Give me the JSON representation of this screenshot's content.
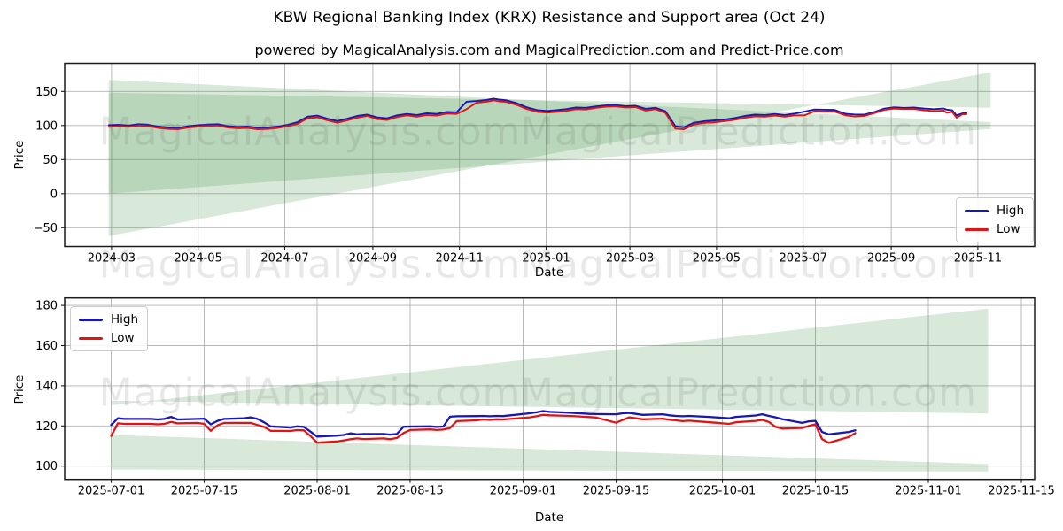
{
  "page": {
    "title": "KBW Regional Banking Index (KRX) Resistance and Support area (Oct 24)",
    "subtitle": "powered by MagicalAnalysis.com and MagicalPrediction.com and Predict-Price.com"
  },
  "watermarks": {
    "analysis": "MagicalAnalysis.com",
    "prediction": "MagicalPrediction.com"
  },
  "colors": {
    "high": "#1717b4",
    "low": "#e01414",
    "area": "#3d9140",
    "grid": "#b3b3b3",
    "frame": "#1a1a1a",
    "text": "#000000"
  },
  "chart_data": [
    {
      "type": "line",
      "name": "overview-chart",
      "xlabel": "Date",
      "ylabel": "Price",
      "grid": true,
      "x_domain": [
        "2024-01-28",
        "2025-12-11"
      ],
      "y_domain": [
        -77.5,
        191.3
      ],
      "yticks": [
        {
          "v": -50,
          "label": "−50"
        },
        {
          "v": 0,
          "label": "0"
        },
        {
          "v": 50,
          "label": "50"
        },
        {
          "v": 100,
          "label": "100"
        },
        {
          "v": 150,
          "label": "150"
        }
      ],
      "xticks": [
        {
          "d": "2024-03-01",
          "label": "2024-03"
        },
        {
          "d": "2024-05-01",
          "label": "2024-05"
        },
        {
          "d": "2024-07-01",
          "label": "2024-07"
        },
        {
          "d": "2024-09-01",
          "label": "2024-09"
        },
        {
          "d": "2024-11-01",
          "label": "2024-11"
        },
        {
          "d": "2025-01-01",
          "label": "2025-01"
        },
        {
          "d": "2025-03-01",
          "label": "2025-03"
        },
        {
          "d": "2025-05-01",
          "label": "2025-05"
        },
        {
          "d": "2025-07-01",
          "label": "2025-07"
        },
        {
          "d": "2025-09-01",
          "label": "2025-09"
        },
        {
          "d": "2025-11-01",
          "label": "2025-11"
        }
      ],
      "legend": {
        "position": "lower-right",
        "entries": [
          {
            "label": "High",
            "color": "high"
          },
          {
            "label": "Low",
            "color": "low"
          }
        ]
      },
      "areas": [
        {
          "name": "support-area",
          "points": [
            [
              "2024-02-28",
              -62
            ],
            [
              "2025-11-10",
              178
            ],
            [
              "2025-11-10",
              126
            ],
            [
              "2024-02-28",
              148
            ]
          ]
        },
        {
          "name": "resistance-area",
          "points": [
            [
              "2024-02-28",
              167
            ],
            [
              "2025-11-10",
              105
            ],
            [
              "2025-11-10",
              95
            ],
            [
              "2024-02-28",
              0
            ]
          ]
        }
      ],
      "x": [
        "2024-02-28",
        "2024-03-06",
        "2024-03-13",
        "2024-03-20",
        "2024-03-27",
        "2024-04-03",
        "2024-04-10",
        "2024-04-17",
        "2024-04-24",
        "2024-05-01",
        "2024-05-08",
        "2024-05-15",
        "2024-05-22",
        "2024-05-29",
        "2024-06-05",
        "2024-06-12",
        "2024-06-19",
        "2024-06-26",
        "2024-07-03",
        "2024-07-10",
        "2024-07-17",
        "2024-07-24",
        "2024-07-31",
        "2024-08-07",
        "2024-08-14",
        "2024-08-21",
        "2024-08-28",
        "2024-09-04",
        "2024-09-11",
        "2024-09-18",
        "2024-09-25",
        "2024-10-02",
        "2024-10-09",
        "2024-10-16",
        "2024-10-23",
        "2024-10-30",
        "2024-11-06",
        "2024-11-13",
        "2024-11-20",
        "2024-11-25",
        "2024-11-29",
        "2024-12-04",
        "2024-12-11",
        "2024-12-18",
        "2024-12-26",
        "2025-01-02",
        "2025-01-08",
        "2025-01-15",
        "2025-01-22",
        "2025-01-29",
        "2025-02-05",
        "2025-02-12",
        "2025-02-19",
        "2025-02-26",
        "2025-03-05",
        "2025-03-12",
        "2025-03-19",
        "2025-03-26",
        "2025-04-02",
        "2025-04-08",
        "2025-04-15",
        "2025-04-23",
        "2025-04-30",
        "2025-05-07",
        "2025-05-14",
        "2025-05-21",
        "2025-05-28",
        "2025-06-04",
        "2025-06-11",
        "2025-06-18",
        "2025-06-25",
        "2025-07-02",
        "2025-07-09",
        "2025-07-16",
        "2025-07-23",
        "2025-07-31",
        "2025-08-06",
        "2025-08-13",
        "2025-08-20",
        "2025-08-27",
        "2025-09-03",
        "2025-09-10",
        "2025-09-17",
        "2025-09-24",
        "2025-10-01",
        "2025-10-08",
        "2025-10-10",
        "2025-10-14",
        "2025-10-17",
        "2025-10-21",
        "2025-10-24"
      ],
      "series": [
        {
          "name": "High",
          "color": "high",
          "values": [
            100.5,
            101,
            100,
            102,
            101,
            98.5,
            97,
            96.5,
            99,
            100.5,
            101.5,
            102,
            99,
            98,
            98.5,
            96.5,
            97,
            98.5,
            101,
            105,
            113,
            114.5,
            110,
            106.5,
            110,
            114,
            116,
            112,
            110.5,
            115,
            117,
            115.5,
            118,
            117,
            120,
            119.5,
            135,
            136,
            137.5,
            139.5,
            138,
            137,
            133,
            127,
            122.5,
            121.5,
            122.5,
            124,
            126.5,
            126,
            128,
            129.5,
            130,
            128.5,
            129,
            124.5,
            126,
            121,
            99,
            97.5,
            104,
            106.5,
            107.5,
            109,
            111,
            114,
            116,
            115.5,
            117,
            115.5,
            117.5,
            120.5,
            123.5,
            123.2,
            123,
            117.2,
            116.3,
            116,
            119.7,
            124.8,
            126.8,
            126,
            126.5,
            125,
            124,
            125,
            123.4,
            122.3,
            115,
            117.8,
            118.3
          ]
        },
        {
          "name": "Low",
          "color": "low",
          "values": [
            98,
            99,
            98,
            100,
            99,
            96.5,
            95,
            94.5,
            97,
            98.5,
            99.5,
            100,
            97,
            96,
            96.5,
            94.5,
            95,
            96.5,
            99,
            102.5,
            110.5,
            112,
            107.5,
            104,
            107.5,
            111.5,
            114,
            109.5,
            108,
            112.5,
            115,
            113,
            115.5,
            114.5,
            117.5,
            117,
            124,
            133.5,
            135,
            137,
            135.5,
            134.5,
            130.5,
            124.5,
            120,
            119,
            120,
            121.5,
            124,
            123.5,
            126,
            127.5,
            128,
            126.5,
            127,
            122,
            124,
            118.5,
            95.5,
            94.5,
            101.5,
            104,
            105,
            106.5,
            108.5,
            111.5,
            113.5,
            113,
            114.5,
            113,
            115,
            115,
            121,
            120.5,
            120.5,
            115,
            113.3,
            114,
            118.2,
            123,
            124.8,
            124.2,
            124.3,
            122.4,
            121.3,
            122,
            118.7,
            120,
            111.5,
            116.4,
            116.8
          ]
        }
      ]
    },
    {
      "type": "line",
      "name": "detail-chart",
      "xlabel": "Date",
      "ylabel": "Price",
      "grid": true,
      "x_domain": [
        "2025-06-24",
        "2025-11-17"
      ],
      "y_domain": [
        93.4,
        183.7
      ],
      "yticks": [
        {
          "v": 100,
          "label": "100"
        },
        {
          "v": 120,
          "label": "120"
        },
        {
          "v": 140,
          "label": "140"
        },
        {
          "v": 160,
          "label": "160"
        },
        {
          "v": 180,
          "label": "180"
        }
      ],
      "xticks": [
        {
          "d": "2025-07-01",
          "label": "2025-07-01"
        },
        {
          "d": "2025-07-15",
          "label": "2025-07-15"
        },
        {
          "d": "2025-08-01",
          "label": "2025-08-01"
        },
        {
          "d": "2025-08-15",
          "label": "2025-08-15"
        },
        {
          "d": "2025-09-01",
          "label": "2025-09-01"
        },
        {
          "d": "2025-09-15",
          "label": "2025-09-15"
        },
        {
          "d": "2025-10-01",
          "label": "2025-10-01"
        },
        {
          "d": "2025-10-15",
          "label": "2025-10-15"
        },
        {
          "d": "2025-11-01",
          "label": "2025-11-01"
        },
        {
          "d": "2025-11-15",
          "label": "2025-11-15"
        }
      ],
      "legend": {
        "position": "upper-left",
        "entries": [
          {
            "label": "High",
            "color": "high"
          },
          {
            "label": "Low",
            "color": "low"
          }
        ]
      },
      "areas": [
        {
          "name": "support-area",
          "points": [
            [
              "2025-07-01",
              130.3
            ],
            [
              "2025-11-10",
              178.4
            ],
            [
              "2025-11-10",
              126.2
            ],
            [
              "2025-07-01",
              132.5
            ]
          ]
        },
        {
          "name": "resistance-area",
          "points": [
            [
              "2025-07-01",
              115.5
            ],
            [
              "2025-11-10",
              101
            ],
            [
              "2025-11-10",
              97.3
            ],
            [
              "2025-07-01",
              98.3
            ]
          ]
        }
      ],
      "x": [
        "2025-07-01",
        "2025-07-02",
        "2025-07-03",
        "2025-07-07",
        "2025-07-08",
        "2025-07-09",
        "2025-07-10",
        "2025-07-11",
        "2025-07-14",
        "2025-07-15",
        "2025-07-16",
        "2025-07-17",
        "2025-07-18",
        "2025-07-21",
        "2025-07-22",
        "2025-07-23",
        "2025-07-24",
        "2025-07-25",
        "2025-07-28",
        "2025-07-29",
        "2025-07-30",
        "2025-07-31",
        "2025-08-01",
        "2025-08-04",
        "2025-08-05",
        "2025-08-06",
        "2025-08-07",
        "2025-08-08",
        "2025-08-11",
        "2025-08-12",
        "2025-08-13",
        "2025-08-14",
        "2025-08-15",
        "2025-08-18",
        "2025-08-19",
        "2025-08-20",
        "2025-08-21",
        "2025-08-22",
        "2025-08-25",
        "2025-08-26",
        "2025-08-27",
        "2025-08-28",
        "2025-08-29",
        "2025-09-02",
        "2025-09-03",
        "2025-09-04",
        "2025-09-05",
        "2025-09-08",
        "2025-09-09",
        "2025-09-10",
        "2025-09-11",
        "2025-09-12",
        "2025-09-15",
        "2025-09-16",
        "2025-09-17",
        "2025-09-18",
        "2025-09-19",
        "2025-09-22",
        "2025-09-23",
        "2025-09-24",
        "2025-09-25",
        "2025-09-26",
        "2025-09-29",
        "2025-09-30",
        "2025-10-01",
        "2025-10-02",
        "2025-10-03",
        "2025-10-06",
        "2025-10-07",
        "2025-10-08",
        "2025-10-09",
        "2025-10-10",
        "2025-10-13",
        "2025-10-14",
        "2025-10-15",
        "2025-10-16",
        "2025-10-17",
        "2025-10-20",
        "2025-10-21"
      ],
      "series": [
        {
          "name": "High",
          "color": "high",
          "values": [
            120.5,
            123.8,
            123.5,
            123.5,
            123.2,
            123.5,
            124.5,
            123.2,
            123.5,
            123.6,
            120.8,
            122.5,
            123.5,
            123.8,
            124.3,
            123.5,
            121.8,
            119.8,
            119.2,
            119.8,
            119.5,
            117.2,
            114.7,
            115.2,
            115.5,
            116.3,
            115.8,
            116.0,
            116.0,
            115.7,
            116.0,
            119.6,
            119.7,
            119.8,
            119.5,
            119.7,
            124.6,
            124.8,
            124.9,
            125.0,
            124.8,
            125.0,
            124.9,
            126.3,
            126.8,
            127.4,
            127.0,
            126.6,
            126.4,
            126.2,
            126.0,
            125.9,
            125.8,
            126.3,
            126.5,
            126.0,
            125.5,
            125.8,
            125.3,
            125.0,
            124.8,
            125.0,
            124.5,
            124.3,
            124.0,
            123.8,
            124.5,
            125.2,
            125.8,
            125.0,
            124.3,
            123.4,
            121.5,
            122.3,
            122.5,
            117.0,
            115.8,
            117.0,
            117.8
          ]
        },
        {
          "name": "Low",
          "color": "low",
          "values": [
            115.0,
            121.3,
            121.0,
            121.0,
            120.8,
            121.0,
            122.0,
            121.3,
            121.5,
            121.0,
            117.6,
            120.3,
            121.5,
            121.5,
            121.5,
            120.5,
            119.5,
            117.6,
            117.5,
            118.0,
            117.8,
            115.0,
            111.7,
            112.3,
            112.8,
            113.4,
            113.8,
            113.5,
            113.8,
            113.4,
            114.0,
            116.5,
            118.0,
            118.3,
            118.0,
            118.2,
            119.0,
            122.4,
            122.8,
            123.2,
            123.0,
            123.3,
            123.2,
            124.3,
            124.8,
            125.5,
            125.3,
            125.0,
            124.8,
            124.6,
            124.4,
            124.2,
            121.6,
            123.0,
            124.3,
            123.8,
            123.3,
            123.6,
            123.1,
            122.8,
            122.4,
            122.6,
            121.8,
            121.6,
            121.3,
            121.0,
            121.8,
            122.5,
            123.0,
            122.0,
            119.5,
            118.7,
            119.0,
            120.0,
            120.8,
            113.5,
            111.6,
            114.5,
            116.4
          ]
        }
      ]
    }
  ]
}
